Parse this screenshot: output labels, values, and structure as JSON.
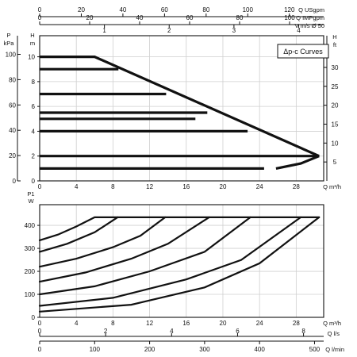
{
  "chart_data": [
    {
      "type": "line",
      "title": "Δp-c Curves",
      "xlabel": "Q m³/h",
      "ylabel_left": "H m",
      "ylabel_left2": "P kPa",
      "ylabel_right": "H ft",
      "top_axis_1_label": "Q USgpm",
      "top_axis_2_label": "Q IMPgpm",
      "top_axis_2b_label": "V m/s Ø 50",
      "xlim": [
        0,
        31
      ],
      "ylim": [
        0,
        11.7
      ],
      "grid": true,
      "x_ticks": [
        0,
        4,
        8,
        12,
        16,
        20,
        24,
        28
      ],
      "y_ticks_m": [
        0,
        2,
        4,
        6,
        8,
        10
      ],
      "y_ticks_kpa": [
        0,
        20,
        40,
        60,
        80,
        100
      ],
      "y_ticks_ft": [
        5,
        10,
        15,
        20,
        25,
        30
      ],
      "top_ticks_usgpm": [
        0,
        20,
        40,
        60,
        80,
        100,
        120
      ],
      "top_ticks_impgpm": [
        0,
        20,
        40,
        60,
        80,
        100
      ],
      "top_ticks_velocity": [
        1,
        2,
        3,
        4
      ],
      "series": [
        {
          "x": [
            0,
            24.5
          ],
          "y": [
            1,
            1
          ]
        },
        {
          "x": [
            0,
            30.5
          ],
          "y": [
            2,
            2
          ]
        },
        {
          "x": [
            0,
            22.7
          ],
          "y": [
            4,
            4
          ]
        },
        {
          "x": [
            0,
            18.3
          ],
          "y": [
            5.5,
            5.5
          ]
        },
        {
          "x": [
            0,
            17
          ],
          "y": [
            5,
            5
          ]
        },
        {
          "x": [
            0,
            13.8
          ],
          "y": [
            7,
            7
          ]
        },
        {
          "x": [
            0,
            8.6
          ],
          "y": [
            9,
            9
          ]
        },
        {
          "x": [
            0,
            6,
            30.5
          ],
          "y": [
            10,
            10,
            2
          ]
        },
        {
          "x": [
            25.8,
            28.5,
            30.5
          ],
          "y": [
            1,
            1.4,
            2
          ]
        }
      ]
    },
    {
      "type": "line",
      "xlabel": "Q m³/h",
      "ylabel": "P1 W",
      "xlim": [
        0,
        31
      ],
      "ylim": [
        0,
        490
      ],
      "grid": true,
      "x_ticks": [
        0,
        4,
        8,
        12,
        16,
        20,
        24,
        28
      ],
      "y_ticks": [
        0,
        100,
        200,
        300,
        400
      ],
      "bottom_axis_2_label": "Q l/s",
      "bottom_axis_3_label": "Q l/min",
      "bottom_ticks_ls": [
        0,
        2,
        4,
        6,
        8
      ],
      "bottom_ticks_lmin": [
        0,
        100,
        200,
        300,
        400,
        500
      ],
      "series": [
        {
          "x": [
            0,
            2,
            4,
            6,
            30.5
          ],
          "y": [
            335,
            360,
            395,
            435,
            435
          ]
        },
        {
          "x": [
            0,
            3,
            6,
            8.5
          ],
          "y": [
            285,
            320,
            370,
            435
          ]
        },
        {
          "x": [
            0,
            4,
            8,
            11,
            13.7
          ],
          "y": [
            220,
            255,
            305,
            355,
            435
          ]
        },
        {
          "x": [
            0,
            5,
            10,
            14,
            18.5
          ],
          "y": [
            155,
            195,
            255,
            320,
            435
          ]
        },
        {
          "x": [
            0,
            6,
            12,
            18,
            23
          ],
          "y": [
            100,
            135,
            200,
            285,
            435
          ]
        },
        {
          "x": [
            0,
            8,
            16,
            22,
            28.5
          ],
          "y": [
            50,
            85,
            165,
            250,
            435
          ]
        },
        {
          "x": [
            0,
            10,
            18,
            24,
            30.5
          ],
          "y": [
            25,
            55,
            130,
            235,
            435
          ]
        }
      ]
    }
  ]
}
